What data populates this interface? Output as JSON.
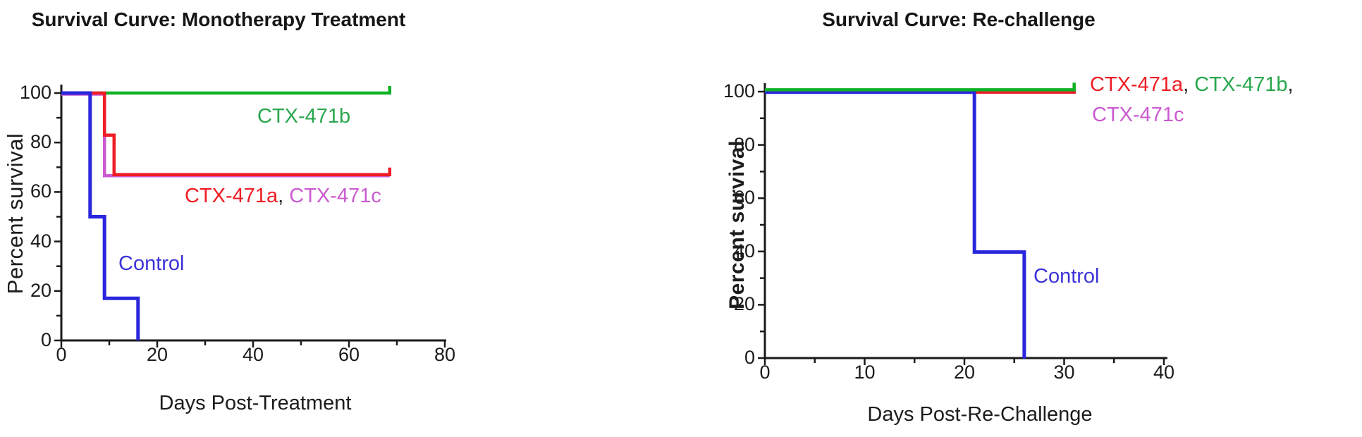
{
  "figure": {
    "background": "#ffffff",
    "axis_color": "#1a1a1a",
    "text_color": "#1c1c1c"
  },
  "colors": {
    "red": "#ee1c24",
    "green_curve": "#0fb227",
    "green_text": "#28a74d",
    "magenta": "#cb5ad1",
    "blue_curve": "#2a26dc",
    "blue_text": "#3d33d9",
    "comma_dark": "#222222"
  },
  "chart_data": [
    {
      "type": "line",
      "subtype": "kaplan-meier-step",
      "title": "Survival Curve: Monotherapy Treatment",
      "xlabel": "Days Post-Treatment",
      "ylabel": "Percent survival",
      "xlim": [
        0,
        80
      ],
      "ylim": [
        0,
        100
      ],
      "xticks": [
        0,
        20,
        40,
        60,
        80
      ],
      "xticks_minor": [
        10,
        30,
        50,
        70
      ],
      "yticks": [
        0,
        20,
        40,
        60,
        80,
        100
      ],
      "yticks_minor": [
        10,
        30,
        50,
        70,
        90
      ],
      "grid": false,
      "legend_position": "inline-annotations",
      "series": [
        {
          "name": "CTX-471b",
          "color": "#0fb227",
          "end_tick": true,
          "steps": [
            [
              0,
              100
            ],
            [
              68.5,
              100
            ]
          ]
        },
        {
          "name": "CTX-471c",
          "color": "#cb5ad1",
          "end_tick": false,
          "steps": [
            [
              0,
              100
            ],
            [
              9,
              100
            ],
            [
              9,
              67
            ],
            [
              68.5,
              67
            ]
          ]
        },
        {
          "name": "CTX-471a",
          "color": "#ee1c24",
          "end_tick": true,
          "steps": [
            [
              0,
              100
            ],
            [
              9,
              100
            ],
            [
              9,
              83
            ],
            [
              11,
              83
            ],
            [
              11,
              67
            ],
            [
              68.5,
              67
            ]
          ]
        },
        {
          "name": "Control",
          "color": "#2a26dc",
          "end_tick": false,
          "steps": [
            [
              0,
              100
            ],
            [
              6,
              100
            ],
            [
              6,
              50
            ],
            [
              9,
              50
            ],
            [
              9,
              17
            ],
            [
              16,
              17
            ],
            [
              16,
              0
            ]
          ]
        }
      ],
      "annotations": [
        {
          "id": "ctx_b",
          "parts": [
            {
              "text": "CTX-471b",
              "color": "#28a74d"
            }
          ]
        },
        {
          "id": "ctx_ac",
          "parts": [
            {
              "text": "CTX-471a",
              "color": "#ee1c24"
            },
            {
              "text": ", ",
              "color": "#222222"
            },
            {
              "text": "CTX-471c",
              "color": "#cb5ad1"
            }
          ]
        },
        {
          "id": "control",
          "parts": [
            {
              "text": "Control",
              "color": "#3d33d9"
            }
          ]
        }
      ]
    },
    {
      "type": "line",
      "subtype": "kaplan-meier-step",
      "title": "Survival Curve: Re-challenge",
      "xlabel": "Days Post-Re-Challenge",
      "ylabel": "Percent survival",
      "xlim": [
        0,
        40
      ],
      "ylim": [
        0,
        100
      ],
      "xticks": [
        0,
        10,
        20,
        30,
        40
      ],
      "xticks_minor": [
        5,
        15,
        25,
        35
      ],
      "yticks": [
        0,
        20,
        40,
        60,
        80,
        100
      ],
      "yticks_minor": [
        10,
        30,
        50,
        70,
        90
      ],
      "grid": false,
      "legend_position": "inline-annotations",
      "series": [
        {
          "name": "CTX-471c",
          "color": "#cb5ad1",
          "end_tick": false,
          "steps": [
            [
              0,
              100
            ],
            [
              31,
              100
            ]
          ]
        },
        {
          "name": "CTX-471a",
          "color": "#ee1c24",
          "end_tick": true,
          "steps": [
            [
              0,
              100
            ],
            [
              31,
              100
            ]
          ]
        },
        {
          "name": "Control",
          "color": "#2a26dc",
          "end_tick": false,
          "steps": [
            [
              0,
              100
            ],
            [
              21,
              100
            ],
            [
              21,
              40
            ],
            [
              26,
              40
            ],
            [
              26,
              0
            ]
          ]
        },
        {
          "name": "CTX-471b",
          "color": "#0fb227",
          "end_tick": true,
          "steps": [
            [
              0,
              100
            ],
            [
              31,
              100
            ]
          ]
        }
      ],
      "annotations": [
        {
          "id": "legend_line1",
          "parts": [
            {
              "text": "CTX-471a",
              "color": "#ee1c24"
            },
            {
              "text": ", ",
              "color": "#222222"
            },
            {
              "text": "CTX-471b",
              "color": "#28a74d"
            },
            {
              "text": ",",
              "color": "#222222"
            }
          ]
        },
        {
          "id": "legend_line2",
          "parts": [
            {
              "text": "CTX-471c",
              "color": "#cb5ad1"
            }
          ]
        },
        {
          "id": "control",
          "parts": [
            {
              "text": "Control",
              "color": "#3d33d9"
            }
          ]
        }
      ]
    }
  ]
}
